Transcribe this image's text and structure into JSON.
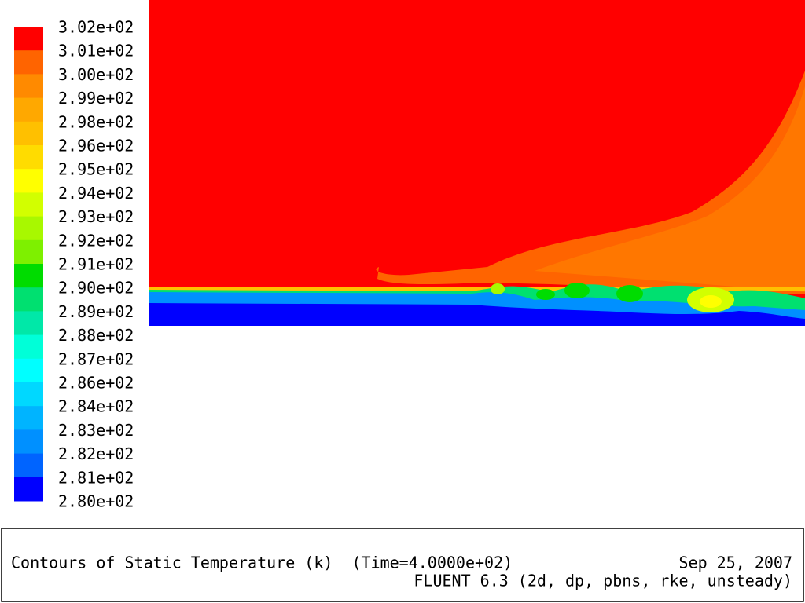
{
  "colorbar": {
    "labels": [
      "3.02e+02",
      "3.01e+02",
      "3.00e+02",
      "2.99e+02",
      "2.98e+02",
      "2.96e+02",
      "2.95e+02",
      "2.94e+02",
      "2.93e+02",
      "2.92e+02",
      "2.91e+02",
      "2.90e+02",
      "2.89e+02",
      "2.88e+02",
      "2.87e+02",
      "2.86e+02",
      "2.84e+02",
      "2.83e+02",
      "2.82e+02",
      "2.81e+02",
      "2.80e+02"
    ],
    "colors": [
      "#ff0000",
      "#ff6400",
      "#ff8a00",
      "#ffa800",
      "#ffc000",
      "#ffdc00",
      "#ffff00",
      "#d2ff00",
      "#a8f800",
      "#7ef000",
      "#00dc00",
      "#00e070",
      "#00e8a8",
      "#00ffd8",
      "#00ffff",
      "#00d8ff",
      "#00b4ff",
      "#0090ff",
      "#0064ff",
      "#0000ff"
    ]
  },
  "footer": {
    "title": "Contours of Static Temperature (k)  (Time=4.0000e+02)",
    "date": "Sep 25, 2007",
    "version": "FLUENT 6.3 (2d, dp, pbns, rke, unsteady)"
  }
}
